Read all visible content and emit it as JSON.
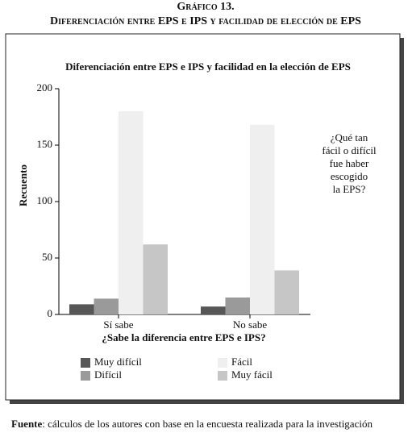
{
  "header": {
    "title": "Gráfico 13.",
    "subtitle": "Diferenciación entre EPS e IPS y facilidad de elección de EPS"
  },
  "chart_data": {
    "type": "bar",
    "title": "Diferenciación entre EPS e IPS y facilidad en la elección de EPS",
    "y_label": "Recuento",
    "x_label": "¿Sabe la diferencia entre EPS e IPS?",
    "categories": [
      "Sí sabe",
      "No sabe"
    ],
    "series": [
      {
        "name": "Muy difícil",
        "color": "#575757",
        "values": [
          9,
          7
        ]
      },
      {
        "name": "Difícil",
        "color": "#9a9a9a",
        "values": [
          14,
          15
        ]
      },
      {
        "name": "Fácil",
        "color": "#efefef",
        "values": [
          180,
          168
        ]
      },
      {
        "name": "Muy fácil",
        "color": "#c6c6c6",
        "values": [
          62,
          39
        ]
      }
    ],
    "legend_title": [
      "¿Qué tan",
      "fácil o difícil",
      "fue haber",
      "escogido",
      "la EPS?"
    ],
    "ylim": [
      0,
      200
    ],
    "yticks": [
      0,
      50,
      100,
      150,
      200
    ]
  },
  "footer": {
    "source_label": "Fuente",
    "source_text": ": cálculos de los autores con base en la encuesta realizada para la investigación"
  }
}
